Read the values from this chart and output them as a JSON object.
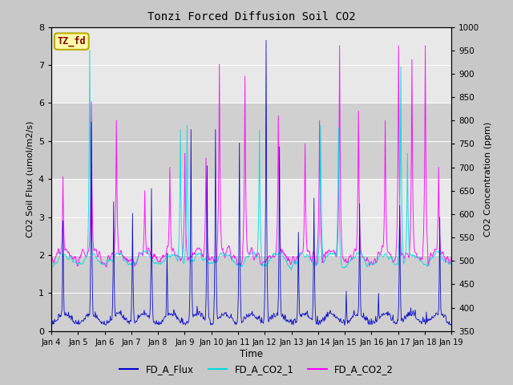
{
  "title": "Tonzi Forced Diffusion Soil CO2",
  "xlabel": "Time",
  "ylabel_left": "CO2 Soil Flux (umol/m2/s)",
  "ylabel_right": "CO2 Concentration (ppm)",
  "ylim_left": [
    0.0,
    8.0
  ],
  "ylim_right": [
    350,
    1000
  ],
  "yticks_left": [
    0.0,
    1.0,
    2.0,
    3.0,
    4.0,
    5.0,
    6.0,
    7.0,
    8.0
  ],
  "yticks_right": [
    350,
    400,
    450,
    500,
    550,
    600,
    650,
    700,
    750,
    800,
    850,
    900,
    950,
    1000
  ],
  "color_flux": "#0000CC",
  "color_co2_1": "#00DDDD",
  "color_co2_2": "#FF00FF",
  "label_flux": "FD_A_Flux",
  "label_co2_1": "FD_A_CO2_1",
  "label_co2_2": "FD_A_CO2_2",
  "tag_text": "TZ_fd",
  "tag_facecolor": "#FFFFAA",
  "tag_edgecolor": "#BBAA00",
  "tag_textcolor": "#880000",
  "fig_facecolor": "#C8C8C8",
  "plot_bg_color": "#E8E8E8",
  "stripe_color": "#D0D0D0",
  "figsize": [
    6.4,
    4.8
  ],
  "dpi": 100,
  "seed": 42
}
